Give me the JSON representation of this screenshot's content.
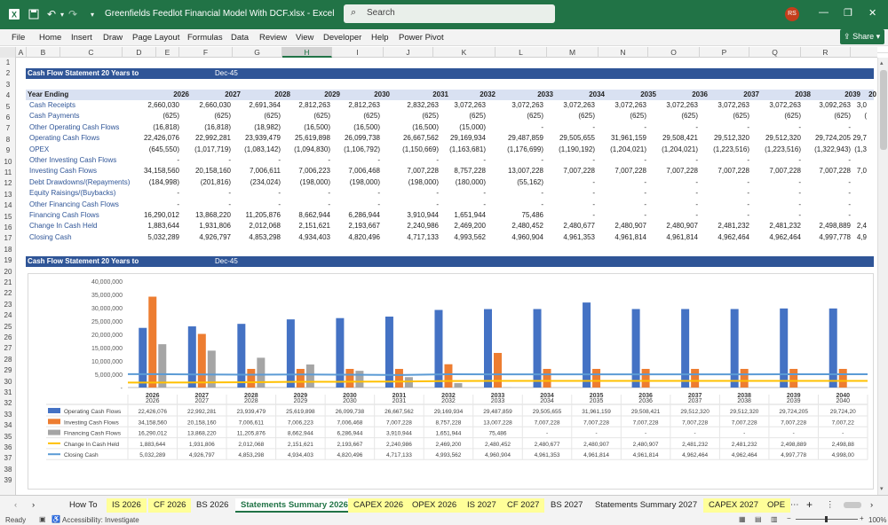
{
  "app": {
    "doc_title": "Greenfields Feedlot Financial Model With DCF.xlsx  -  Excel",
    "search_placeholder": "Search",
    "user_initials": "RS",
    "share_label": "Share"
  },
  "menu": [
    "File",
    "Home",
    "Insert",
    "Draw",
    "Page Layout",
    "Formulas",
    "Data",
    "Review",
    "View",
    "Developer",
    "Help",
    "Power Pivot"
  ],
  "columns": [
    "A",
    "B",
    "C",
    "D",
    "E",
    "F",
    "G",
    "H",
    "I",
    "J",
    "K",
    "L",
    "M",
    "N",
    "O",
    "P",
    "Q",
    "R"
  ],
  "selected_column": "H",
  "rows": [
    "1",
    "2",
    "3",
    "4",
    "5",
    "6",
    "7",
    "8",
    "9",
    "10",
    "11",
    "12",
    "13",
    "14",
    "15",
    "16",
    "17",
    "18",
    "19",
    "20",
    "21",
    "22",
    "23",
    "24",
    "25",
    "26",
    "27",
    "28",
    "29",
    "30",
    "31",
    "32",
    "33",
    "34",
    "35",
    "36",
    "37",
    "38",
    "39"
  ],
  "table": {
    "title": "Cash Flow Statement 20 Years to",
    "date": "Dec-45",
    "year_label": "Year Ending",
    "years": [
      "2026",
      "2027",
      "2028",
      "2029",
      "2030",
      "2031",
      "2032",
      "2033",
      "2034",
      "2035",
      "2036",
      "2037",
      "2038",
      "2039",
      "20"
    ],
    "lines": [
      {
        "label": "Cash Receipts",
        "values": [
          "2,660,030",
          "2,660,030",
          "2,691,364",
          "2,812,263",
          "2,812,263",
          "2,832,263",
          "3,072,263",
          "3,072,263",
          "3,072,263",
          "3,072,263",
          "3,072,263",
          "3,072,263",
          "3,072,263",
          "3,092,263",
          "3,0"
        ]
      },
      {
        "label": "Cash Payments",
        "values": [
          "(625)",
          "(625)",
          "(625)",
          "(625)",
          "(625)",
          "(625)",
          "(625)",
          "(625)",
          "(625)",
          "(625)",
          "(625)",
          "(625)",
          "(625)",
          "(625)",
          "("
        ]
      },
      {
        "label": "Other Operating Cash Flows",
        "values": [
          "(16,818)",
          "(16,818)",
          "(18,982)",
          "(16,500)",
          "(16,500)",
          "(16,500)",
          "(15,000)",
          "-",
          "-",
          "-",
          "-",
          "-",
          "-",
          "-",
          ""
        ]
      },
      {
        "label": "Operating Cash Flows",
        "values": [
          "22,426,076",
          "22,992,281",
          "23,939,479",
          "25,619,898",
          "26,099,738",
          "26,667,562",
          "29,169,934",
          "29,487,859",
          "29,505,655",
          "31,961,159",
          "29,508,421",
          "29,512,320",
          "29,512,320",
          "29,724,205",
          "29,7"
        ]
      },
      {
        "label": "OPEX",
        "values": [
          "(645,550)",
          "(1,017,719)",
          "(1,083,142)",
          "(1,094,830)",
          "(1,106,792)",
          "(1,150,669)",
          "(1,163,681)",
          "(1,176,699)",
          "(1,190,192)",
          "(1,204,021)",
          "(1,204,021)",
          "(1,223,516)",
          "(1,223,516)",
          "(1,322,943)",
          "(1,3"
        ]
      },
      {
        "label": "Other Investing Cash Flows",
        "values": [
          "-",
          "-",
          "-",
          "-",
          "-",
          "-",
          "-",
          "-",
          "-",
          "-",
          "-",
          "-",
          "-",
          "-",
          ""
        ]
      },
      {
        "label": "Investing Cash Flows",
        "values": [
          "34,158,560",
          "20,158,160",
          "7,006,611",
          "7,006,223",
          "7,006,468",
          "7,007,228",
          "8,757,228",
          "13,007,228",
          "7,007,228",
          "7,007,228",
          "7,007,228",
          "7,007,228",
          "7,007,228",
          "7,007,228",
          "7,0"
        ]
      },
      {
        "label": "Debt Drawdowns/(Repayments)",
        "values": [
          "(184,998)",
          "(201,816)",
          "(234,024)",
          "(198,000)",
          "(198,000)",
          "(198,000)",
          "(180,000)",
          "(55,162)",
          "-",
          "-",
          "-",
          "-",
          "-",
          "-",
          ""
        ]
      },
      {
        "label": "Equity Raisings/(Buybacks)",
        "values": [
          "-",
          "-",
          "-",
          "-",
          "-",
          "-",
          "-",
          "-",
          "-",
          "-",
          "-",
          "-",
          "-",
          "-",
          ""
        ]
      },
      {
        "label": "Other Financing Cash Flows",
        "values": [
          "-",
          "-",
          "-",
          "-",
          "-",
          "-",
          "-",
          "-",
          "-",
          "-",
          "-",
          "-",
          "-",
          "-",
          ""
        ]
      },
      {
        "label": "Financing Cash Flows",
        "values": [
          "16,290,012",
          "13,868,220",
          "11,205,876",
          "8,662,944",
          "6,286,944",
          "3,910,944",
          "1,651,944",
          "75,486",
          "-",
          "-",
          "-",
          "-",
          "-",
          "-",
          ""
        ]
      },
      {
        "label": "Change In Cash Held",
        "values": [
          "1,883,644",
          "1,931,806",
          "2,012,068",
          "2,151,621",
          "2,193,667",
          "2,240,986",
          "2,469,200",
          "2,480,452",
          "2,480,677",
          "2,480,907",
          "2,480,907",
          "2,481,232",
          "2,481,232",
          "2,498,889",
          "2,4"
        ]
      },
      {
        "label": "Closing Cash",
        "values": [
          "5,032,289",
          "4,926,797",
          "4,853,298",
          "4,934,403",
          "4,820,496",
          "4,717,133",
          "4,993,562",
          "4,960,904",
          "4,961,353",
          "4,961,814",
          "4,961,814",
          "4,962,464",
          "4,962,464",
          "4,997,778",
          "4,9"
        ]
      }
    ]
  },
  "chart_section": {
    "title": "Cash Flow Statement 20 Years to",
    "date": "Dec-45"
  },
  "chart_data": {
    "type": "bar",
    "categories": [
      "2026",
      "2027",
      "2028",
      "2029",
      "2030",
      "2031",
      "2032",
      "2033",
      "2034",
      "2035",
      "2036",
      "2037",
      "2038",
      "2039",
      "2040"
    ],
    "ylim": [
      0,
      40000000
    ],
    "yticks": [
      "-",
      "5,000,000",
      "10,000,000",
      "15,000,000",
      "20,000,000",
      "25,000,000",
      "30,000,000",
      "35,000,000",
      "40,000,000"
    ],
    "series": [
      {
        "name": "Operating Cash Flows",
        "kind": "bar",
        "color": "#4472c4",
        "values": [
          22426076,
          22992281,
          23939479,
          25619898,
          26099738,
          26667562,
          29169934,
          29487859,
          29505655,
          31961159,
          29508421,
          29512320,
          29512320,
          29724205,
          29724205
        ]
      },
      {
        "name": "Investing Cash Flows",
        "kind": "bar",
        "color": "#ed7d31",
        "values": [
          34158560,
          20158160,
          7006611,
          7006223,
          7006468,
          7007228,
          8757228,
          13007228,
          7007228,
          7007228,
          7007228,
          7007228,
          7007228,
          7007228,
          7007228
        ]
      },
      {
        "name": "Financing Cash Flows",
        "kind": "bar",
        "color": "#a5a5a5",
        "values": [
          16290012,
          13868220,
          11205876,
          8662944,
          6286944,
          3910944,
          1651944,
          75486,
          0,
          0,
          0,
          0,
          0,
          0,
          0
        ]
      },
      {
        "name": "Change In Cash Held",
        "kind": "line",
        "color": "#ffc000",
        "values": [
          1883644,
          1931806,
          2012068,
          2151621,
          2193667,
          2240986,
          2469200,
          2480452,
          2480677,
          2480907,
          2480907,
          2481232,
          2481232,
          2498889,
          2498889
        ]
      },
      {
        "name": "Closing Cash",
        "kind": "line",
        "color": "#5b9bd5",
        "values": [
          5032289,
          4926797,
          4853298,
          4934403,
          4820496,
          4717133,
          4993562,
          4960904,
          4961353,
          4961814,
          4961814,
          4962464,
          4962464,
          4997778,
          4998000
        ]
      }
    ],
    "data_table": [
      {
        "name": "Operating Cash Flows",
        "values": [
          "22,426,076",
          "22,992,281",
          "23,939,479",
          "25,619,898",
          "26,099,738",
          "26,667,562",
          "29,169,934",
          "29,487,859",
          "29,505,655",
          "31,961,159",
          "29,508,421",
          "29,512,320",
          "29,512,320",
          "29,724,205",
          "29,724,20"
        ]
      },
      {
        "name": "Investing Cash Flows",
        "values": [
          "34,158,560",
          "20,158,160",
          "7,006,611",
          "7,006,223",
          "7,006,468",
          "7,007,228",
          "8,757,228",
          "13,007,228",
          "7,007,228",
          "7,007,228",
          "7,007,228",
          "7,007,228",
          "7,007,228",
          "7,007,228",
          "7,007,22"
        ]
      },
      {
        "name": "Financing Cash Flows",
        "values": [
          "16,290,012",
          "13,868,220",
          "11,205,876",
          "8,662,944",
          "6,286,944",
          "3,910,944",
          "1,651,944",
          "75,486",
          "-",
          "-",
          "-",
          "-",
          "-",
          "-",
          "-"
        ]
      },
      {
        "name": "Change In Cash Held",
        "values": [
          "1,883,644",
          "1,931,806",
          "2,012,068",
          "2,151,621",
          "2,193,667",
          "2,240,986",
          "2,469,200",
          "2,480,452",
          "2,480,677",
          "2,480,907",
          "2,480,907",
          "2,481,232",
          "2,481,232",
          "2,498,889",
          "2,498,88"
        ]
      },
      {
        "name": "Closing Cash",
        "values": [
          "5,032,289",
          "4,926,797",
          "4,853,298",
          "4,934,403",
          "4,820,496",
          "4,717,133",
          "4,993,562",
          "4,960,904",
          "4,961,353",
          "4,961,814",
          "4,961,814",
          "4,962,464",
          "4,962,464",
          "4,997,778",
          "4,998,00"
        ]
      }
    ]
  },
  "sheet_tabs": [
    {
      "label": "How To",
      "style": "plain"
    },
    {
      "label": "IS 2026",
      "style": "yellow"
    },
    {
      "label": "CF 2026",
      "style": "yellow"
    },
    {
      "label": "BS 2026",
      "style": "plain"
    },
    {
      "label": "Statements Summary 2026",
      "style": "active"
    },
    {
      "label": "CAPEX 2026",
      "style": "yellow"
    },
    {
      "label": "OPEX 2026",
      "style": "yellow"
    },
    {
      "label": "IS 2027",
      "style": "yellow"
    },
    {
      "label": "CF 2027",
      "style": "yellow"
    },
    {
      "label": "BS 2027",
      "style": "plain"
    },
    {
      "label": "Statements Summary 2027",
      "style": "plain"
    },
    {
      "label": "CAPEX 2027",
      "style": "yellow"
    },
    {
      "label": "OPE",
      "style": "yellow"
    }
  ],
  "status": {
    "ready": "Ready",
    "accessibility": "Accessibility: Investigate",
    "zoom": "100%"
  }
}
